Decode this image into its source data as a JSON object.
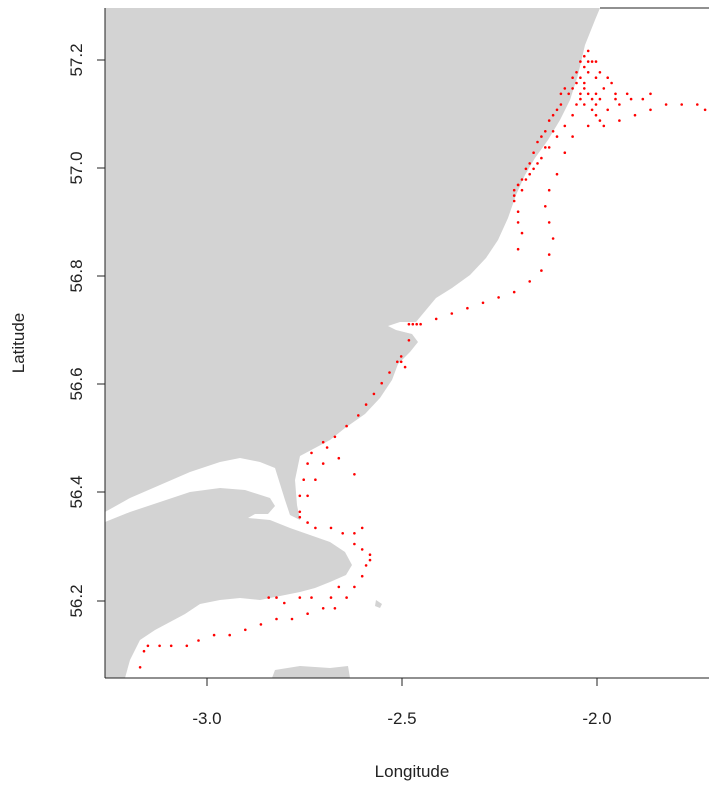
{
  "chart_data": {
    "type": "scatter",
    "xlabel": "Longitude",
    "ylabel": "Latitude",
    "xlim": [
      -3.26,
      -1.71
    ],
    "ylim": [
      56.05,
      57.3
    ],
    "x_ticks": [
      {
        "value": -3.0,
        "label": "-3.0"
      },
      {
        "value": -2.5,
        "label": "-2.5"
      },
      {
        "value": -2.0,
        "label": "-2.0"
      }
    ],
    "y_ticks": [
      {
        "value": 56.2,
        "label": "56.2"
      },
      {
        "value": 56.4,
        "label": "56.4"
      },
      {
        "value": 56.6,
        "label": "56.6"
      },
      {
        "value": 56.8,
        "label": "56.8"
      },
      {
        "value": 57.0,
        "label": "57.0"
      },
      {
        "value": 57.2,
        "label": "57.2"
      }
    ],
    "grid": false,
    "legend": "none",
    "colors": {
      "land": "#d3d3d3",
      "sea": "#ffffff",
      "track": "#ff0000",
      "axis": "#222222"
    },
    "track_points": [
      [
        -3.17,
        56.07
      ],
      [
        -3.16,
        56.1
      ],
      [
        -3.15,
        56.11
      ],
      [
        -3.12,
        56.11
      ],
      [
        -3.09,
        56.11
      ],
      [
        -3.05,
        56.11
      ],
      [
        -3.02,
        56.12
      ],
      [
        -2.98,
        56.13
      ],
      [
        -2.94,
        56.13
      ],
      [
        -2.9,
        56.14
      ],
      [
        -2.86,
        56.15
      ],
      [
        -2.82,
        56.16
      ],
      [
        -2.78,
        56.16
      ],
      [
        -2.74,
        56.17
      ],
      [
        -2.7,
        56.18
      ],
      [
        -2.67,
        56.18
      ],
      [
        -2.64,
        56.2
      ],
      [
        -2.62,
        56.22
      ],
      [
        -2.6,
        56.24
      ],
      [
        -2.59,
        56.26
      ],
      [
        -2.58,
        56.27
      ],
      [
        -2.58,
        56.28
      ],
      [
        -2.6,
        56.29
      ],
      [
        -2.62,
        56.3
      ],
      [
        -2.65,
        56.32
      ],
      [
        -2.68,
        56.33
      ],
      [
        -2.72,
        56.33
      ],
      [
        -2.74,
        56.34
      ],
      [
        -2.76,
        56.36
      ],
      [
        -2.76,
        56.39
      ],
      [
        -2.75,
        56.42
      ],
      [
        -2.74,
        56.45
      ],
      [
        -2.73,
        56.47
      ],
      [
        -2.7,
        56.49
      ],
      [
        -2.67,
        56.5
      ],
      [
        -2.64,
        56.52
      ],
      [
        -2.61,
        56.54
      ],
      [
        -2.59,
        56.56
      ],
      [
        -2.57,
        56.58
      ],
      [
        -2.55,
        56.6
      ],
      [
        -2.53,
        56.62
      ],
      [
        -2.51,
        56.64
      ],
      [
        -2.48,
        56.68
      ],
      [
        -2.45,
        56.71
      ],
      [
        -2.41,
        56.72
      ],
      [
        -2.37,
        56.73
      ],
      [
        -2.33,
        56.74
      ],
      [
        -2.29,
        56.75
      ],
      [
        -2.25,
        56.76
      ],
      [
        -2.21,
        56.77
      ],
      [
        -2.17,
        56.79
      ],
      [
        -2.14,
        56.81
      ],
      [
        -2.12,
        56.84
      ],
      [
        -2.11,
        56.87
      ],
      [
        -2.12,
        56.9
      ],
      [
        -2.13,
        56.93
      ],
      [
        -2.12,
        56.96
      ],
      [
        -2.1,
        56.99
      ],
      [
        -2.08,
        57.03
      ],
      [
        -2.06,
        57.06
      ],
      [
        -2.02,
        57.08
      ],
      [
        -1.98,
        57.08
      ],
      [
        -1.94,
        57.09
      ],
      [
        -1.9,
        57.1
      ],
      [
        -1.86,
        57.11
      ],
      [
        -1.82,
        57.12
      ],
      [
        -1.78,
        57.12
      ],
      [
        -1.74,
        57.12
      ],
      [
        -1.72,
        57.11
      ],
      [
        -2.76,
        56.35
      ],
      [
        -2.74,
        56.39
      ],
      [
        -2.72,
        56.42
      ],
      [
        -2.7,
        56.45
      ],
      [
        -2.69,
        56.48
      ],
      [
        -2.66,
        56.46
      ],
      [
        -2.62,
        56.43
      ],
      [
        -2.6,
        56.33
      ],
      [
        -2.62,
        56.32
      ],
      [
        -2.66,
        56.22
      ],
      [
        -2.68,
        56.2
      ],
      [
        -2.73,
        56.2
      ],
      [
        -2.76,
        56.2
      ],
      [
        -2.8,
        56.19
      ],
      [
        -2.82,
        56.2
      ],
      [
        -2.84,
        56.2
      ],
      [
        -2.48,
        56.71
      ],
      [
        -2.47,
        56.71
      ],
      [
        -2.46,
        56.71
      ],
      [
        -2.5,
        56.65
      ],
      [
        -2.5,
        56.64
      ],
      [
        -2.49,
        56.63
      ],
      [
        -2.2,
        56.85
      ],
      [
        -2.19,
        56.88
      ],
      [
        -2.2,
        56.9
      ],
      [
        -2.2,
        56.92
      ],
      [
        -2.21,
        56.95
      ],
      [
        -2.2,
        56.97
      ],
      [
        -2.18,
        56.98
      ],
      [
        -2.16,
        57.0
      ],
      [
        -2.14,
        57.02
      ],
      [
        -2.12,
        57.04
      ],
      [
        -2.1,
        57.06
      ],
      [
        -2.08,
        57.08
      ],
      [
        -2.06,
        57.1
      ],
      [
        -2.05,
        57.12
      ],
      [
        -2.04,
        57.14
      ],
      [
        -2.03,
        57.16
      ],
      [
        -2.02,
        57.18
      ],
      [
        -2.01,
        57.2
      ],
      [
        -2.02,
        57.22
      ],
      [
        -2.03,
        57.21
      ],
      [
        -2.07,
        57.14
      ],
      [
        -2.06,
        57.15
      ],
      [
        -2.05,
        57.16
      ],
      [
        -2.04,
        57.17
      ],
      [
        -2.03,
        57.15
      ],
      [
        -2.02,
        57.14
      ],
      [
        -2.01,
        57.13
      ],
      [
        -2.0,
        57.14
      ],
      [
        -1.99,
        57.13
      ],
      [
        -1.98,
        57.15
      ],
      [
        -1.97,
        57.17
      ],
      [
        -1.96,
        57.16
      ],
      [
        -1.95,
        57.14
      ],
      [
        -2.08,
        57.15
      ],
      [
        -2.09,
        57.14
      ],
      [
        -2.04,
        57.13
      ],
      [
        -2.03,
        57.12
      ],
      [
        -2.01,
        57.11
      ],
      [
        -2.0,
        57.1
      ],
      [
        -1.99,
        57.09
      ],
      [
        -2.21,
        56.96
      ],
      [
        -2.2,
        56.97
      ],
      [
        -2.19,
        56.98
      ],
      [
        -2.18,
        57.0
      ],
      [
        -2.17,
        57.01
      ],
      [
        -2.16,
        57.03
      ],
      [
        -2.15,
        57.05
      ],
      [
        -2.14,
        57.06
      ],
      [
        -2.13,
        57.07
      ],
      [
        -2.12,
        57.09
      ],
      [
        -2.11,
        57.1
      ],
      [
        -2.1,
        57.11
      ],
      [
        -2.09,
        57.12
      ],
      [
        -2.11,
        57.07
      ],
      [
        -2.13,
        57.04
      ],
      [
        -2.15,
        57.01
      ],
      [
        -2.17,
        56.99
      ],
      [
        -2.19,
        56.96
      ],
      [
        -2.21,
        56.94
      ],
      [
        -2.0,
        57.12
      ],
      [
        -1.97,
        57.11
      ],
      [
        -1.94,
        57.12
      ],
      [
        -1.91,
        57.13
      ],
      [
        -1.88,
        57.13
      ],
      [
        -1.86,
        57.14
      ],
      [
        -1.92,
        57.14
      ],
      [
        -1.95,
        57.13
      ],
      [
        -2.04,
        57.2
      ],
      [
        -2.03,
        57.19
      ],
      [
        -2.05,
        57.18
      ],
      [
        -2.06,
        57.17
      ],
      [
        -2.02,
        57.2
      ],
      [
        -2.0,
        57.17
      ],
      [
        -1.99,
        57.18
      ],
      [
        -2.0,
        57.2
      ]
    ]
  }
}
